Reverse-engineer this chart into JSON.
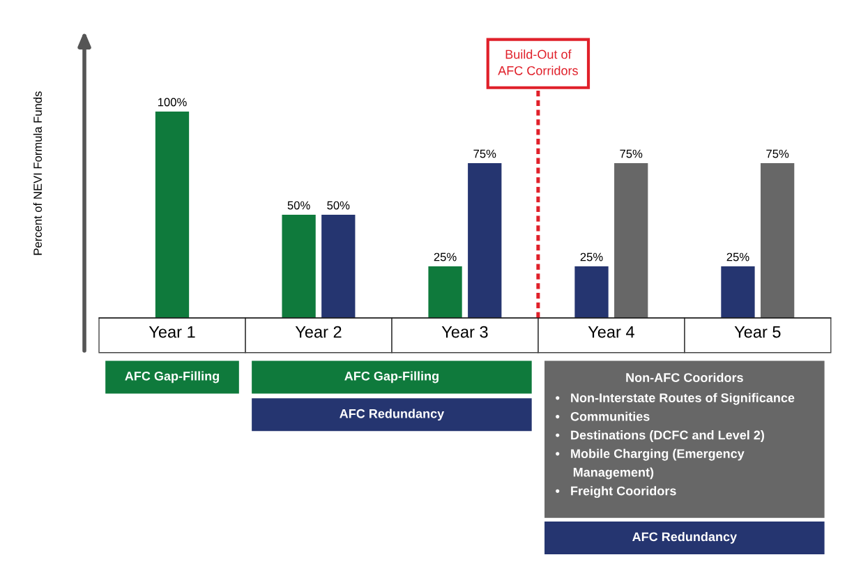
{
  "chart_data": {
    "type": "bar",
    "ylabel": "Percent of NEVI Formula Funds",
    "categories": [
      "Year 1",
      "Year 2",
      "Year 3",
      "Year 4",
      "Year 5"
    ],
    "series": [
      {
        "color": "#0f7a3c",
        "values": [
          100,
          50,
          25,
          null,
          null
        ],
        "value_labels": [
          "100%",
          "50%",
          "25%",
          null,
          null
        ]
      },
      {
        "color": "#253570",
        "values": [
          null,
          50,
          75,
          25,
          25
        ],
        "value_labels": [
          null,
          "50%",
          "75%",
          "25%",
          "25%"
        ]
      },
      {
        "color": "#676767",
        "values": [
          null,
          null,
          null,
          75,
          75
        ],
        "value_labels": [
          null,
          null,
          null,
          "75%",
          "75%"
        ]
      }
    ],
    "annotations": [
      "Build-Out of\nAFC Corridors",
      "AFC Gap-Filling",
      "AFC Gap-Filling",
      "AFC Redundancy",
      "Non-AFC Cooridors\n•   Non-Interstate Routes of Significance\n•   Communities\n•   Destinations (DCFC and Level 2)\n•   Mobile Charging (Emergency\n     Management)\n•   Freight Cooridors",
      "AFC Redundancy"
    ],
    "grid": false,
    "legend": false
  }
}
